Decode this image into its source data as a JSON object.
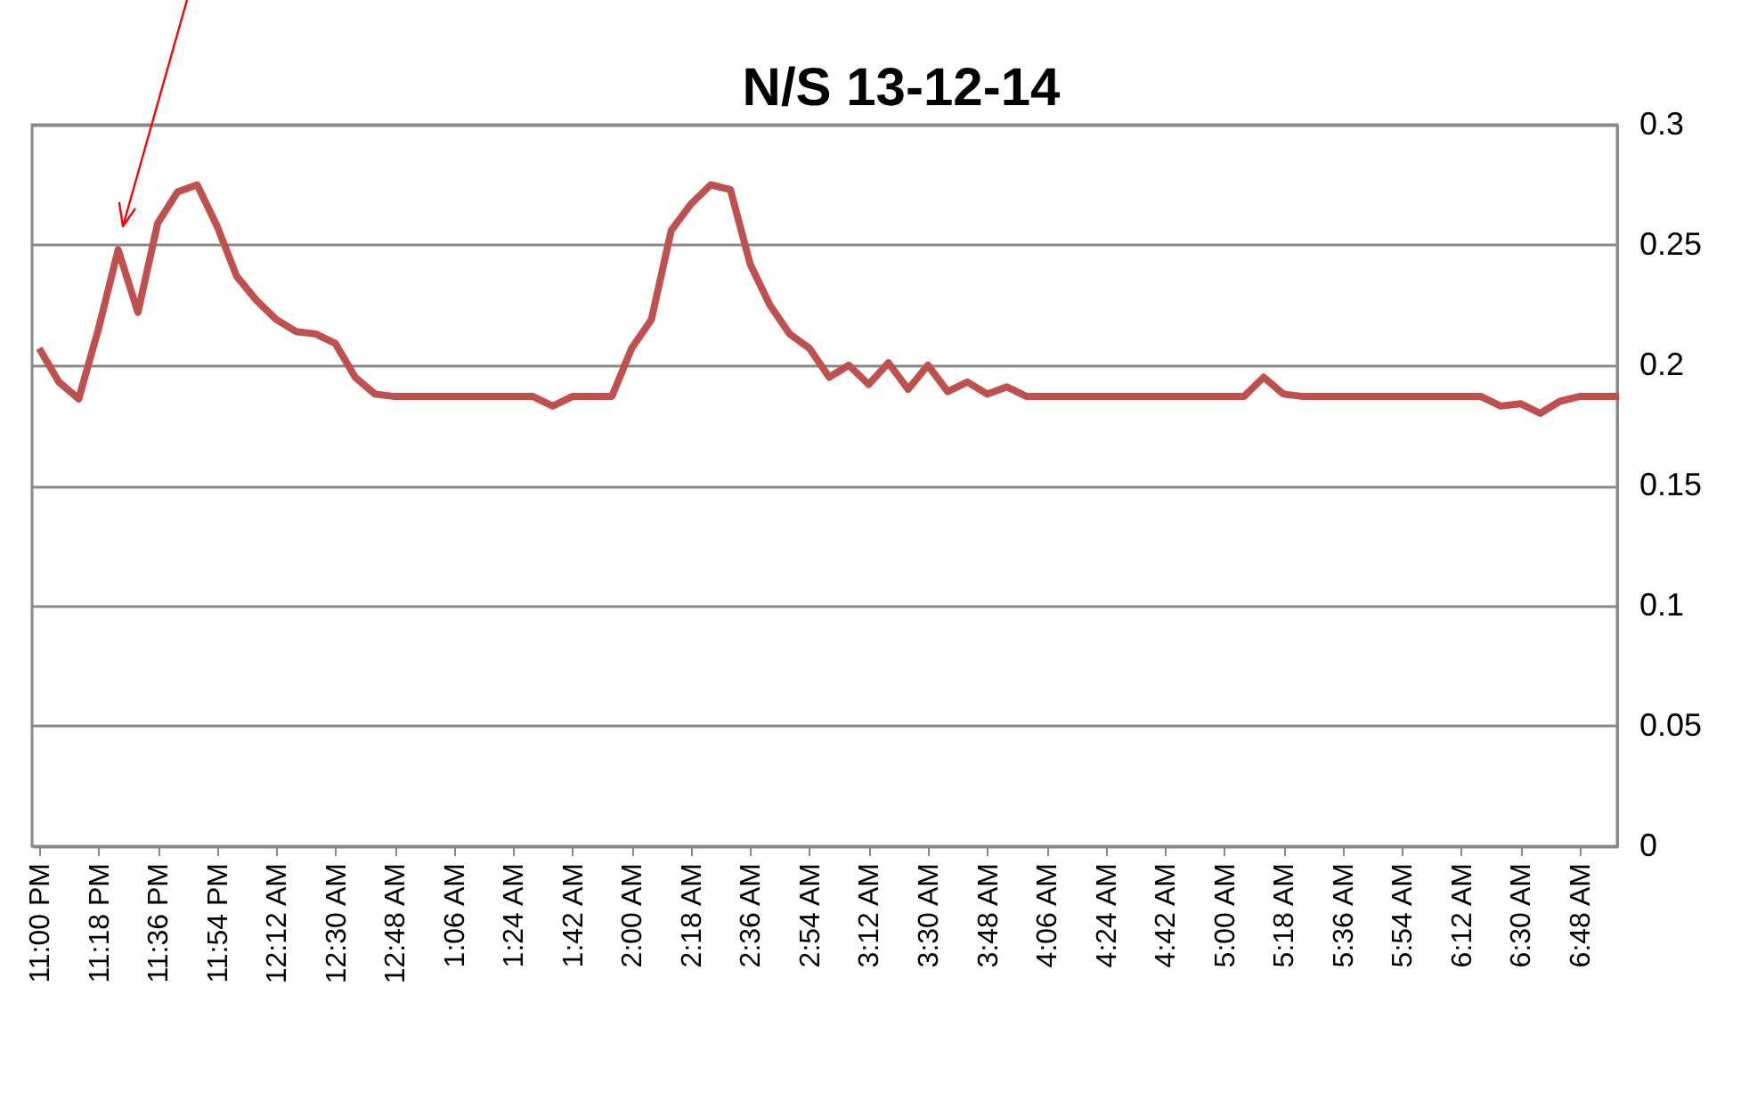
{
  "chart_data": {
    "type": "line",
    "title": "N/S   13-12-14",
    "categories": [
      "11:00 PM",
      null,
      null,
      "11:18 PM",
      null,
      null,
      "11:36 PM",
      null,
      null,
      "11:54 PM",
      null,
      null,
      "12:12 AM",
      null,
      null,
      "12:30 AM",
      null,
      null,
      "12:48 AM",
      null,
      null,
      "1:06 AM",
      null,
      null,
      "1:24 AM",
      null,
      null,
      "1:42 AM",
      null,
      null,
      "2:00 AM",
      null,
      null,
      "2:18 AM",
      null,
      null,
      "2:36 AM",
      null,
      null,
      "2:54 AM",
      null,
      null,
      "3:12 AM",
      null,
      null,
      "3:30 AM",
      null,
      null,
      "3:48 AM",
      null,
      null,
      "4:06 AM",
      null,
      null,
      "4:24 AM",
      null,
      null,
      "4:42 AM",
      null,
      null,
      "5:00 AM",
      null,
      null,
      "5:18 AM",
      null,
      null,
      "5:36 AM",
      null,
      null,
      "5:54 AM",
      null,
      null,
      "6:12 AM",
      null,
      null,
      "6:30 AM",
      null,
      null,
      "6:48 AM",
      null,
      null
    ],
    "series": [
      {
        "color": "#c0504d",
        "values": [
          0.207,
          0.193,
          0.186,
          0.215,
          0.248,
          0.222,
          0.259,
          0.272,
          0.275,
          0.258,
          0.237,
          0.227,
          0.219,
          0.214,
          0.213,
          0.209,
          0.195,
          0.188,
          0.187,
          0.187,
          0.187,
          0.187,
          0.187,
          0.187,
          0.187,
          0.187,
          0.183,
          0.187,
          0.187,
          0.187,
          0.207,
          0.219,
          0.256,
          0.267,
          0.275,
          0.273,
          0.242,
          0.225,
          0.213,
          0.207,
          0.195,
          0.2,
          0.192,
          0.201,
          0.19,
          0.2,
          0.189,
          0.193,
          0.188,
          0.191,
          0.187,
          0.187,
          0.187,
          0.187,
          0.187,
          0.187,
          0.187,
          0.187,
          0.187,
          0.187,
          0.187,
          0.187,
          0.195,
          0.188,
          0.187,
          0.187,
          0.187,
          0.187,
          0.187,
          0.187,
          0.187,
          0.187,
          0.187,
          0.187,
          0.183,
          0.184,
          0.18,
          0.185,
          0.187,
          0.187,
          0.187
        ]
      }
    ],
    "ylim": [
      0,
      0.3
    ],
    "yticks": [
      0,
      0.05,
      0.1,
      0.15,
      0.2,
      0.25,
      0.3
    ],
    "grid": "y",
    "marker": "none",
    "line_style": "solid"
  }
}
